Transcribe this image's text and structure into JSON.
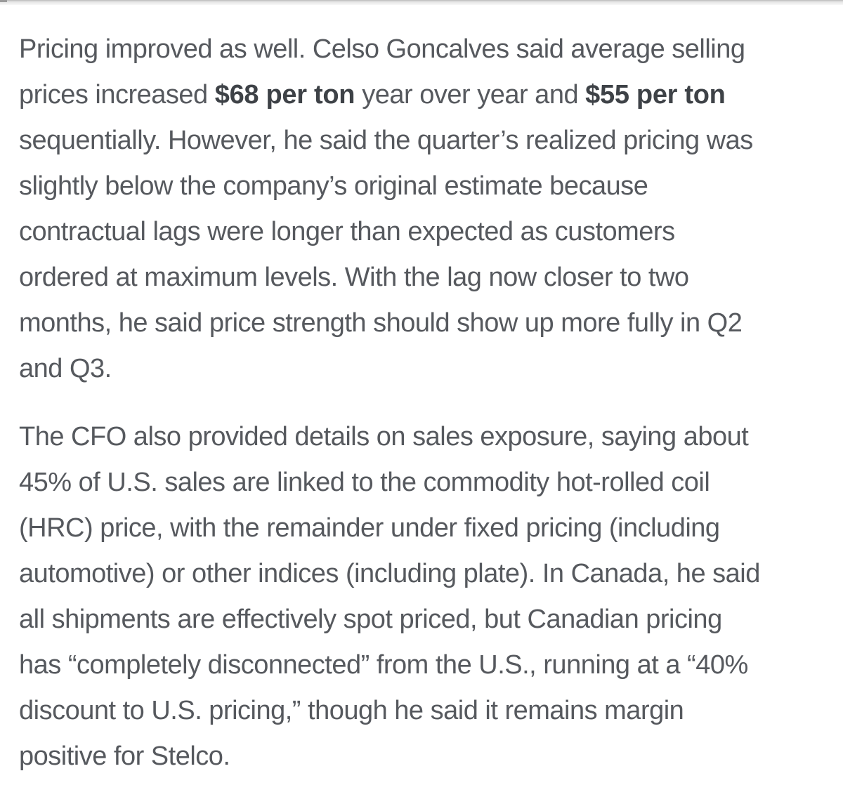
{
  "theme": {
    "background": "#ffffff",
    "text_color": "#56595e",
    "bold_text_color": "#3e4247",
    "divider_top_color": "#c6c6c6",
    "divider_mid_color": "#e9e9e9",
    "divider_low_color": "#f5f5f5",
    "divider_corner_color": "#9b9b9b"
  },
  "article": {
    "paragraphs": [
      {
        "lines": [
          [
            {
              "text": "Pricing improved as well. Celso Goncalves said average selling"
            }
          ],
          [
            {
              "text": "prices increased "
            },
            {
              "text": "$68 per ton",
              "bold": true
            },
            {
              "text": " year over year and "
            },
            {
              "text": "$55 per ton",
              "bold": true
            }
          ],
          [
            {
              "text": "sequentially. However, he said the quarter’s realized pricing was"
            }
          ],
          [
            {
              "text": "slightly below the company’s original estimate because"
            }
          ],
          [
            {
              "text": "contractual lags were longer than expected as customers"
            }
          ],
          [
            {
              "text": "ordered at maximum levels. With the lag now closer to two"
            }
          ],
          [
            {
              "text": "months, he said price strength should show up more fully in Q2"
            }
          ],
          [
            {
              "text": "and Q3."
            }
          ]
        ]
      },
      {
        "lines": [
          [
            {
              "text": "The CFO also provided details on sales exposure, saying about"
            }
          ],
          [
            {
              "text": "45% of U.S. sales are linked to the commodity hot-rolled coil"
            }
          ],
          [
            {
              "text": "(HRC) price, with the remainder under fixed pricing (including"
            }
          ],
          [
            {
              "text": "automotive) or other indices (including plate). In Canada, he said"
            }
          ],
          [
            {
              "text": "all shipments are effectively spot priced, but Canadian pricing"
            }
          ],
          [
            {
              "text": "has “completely disconnected” from the U.S., running at a “40%"
            }
          ],
          [
            {
              "text": "discount to U.S. pricing,” though he said it remains margin"
            }
          ],
          [
            {
              "text": "positive for Stelco."
            }
          ]
        ]
      }
    ]
  }
}
